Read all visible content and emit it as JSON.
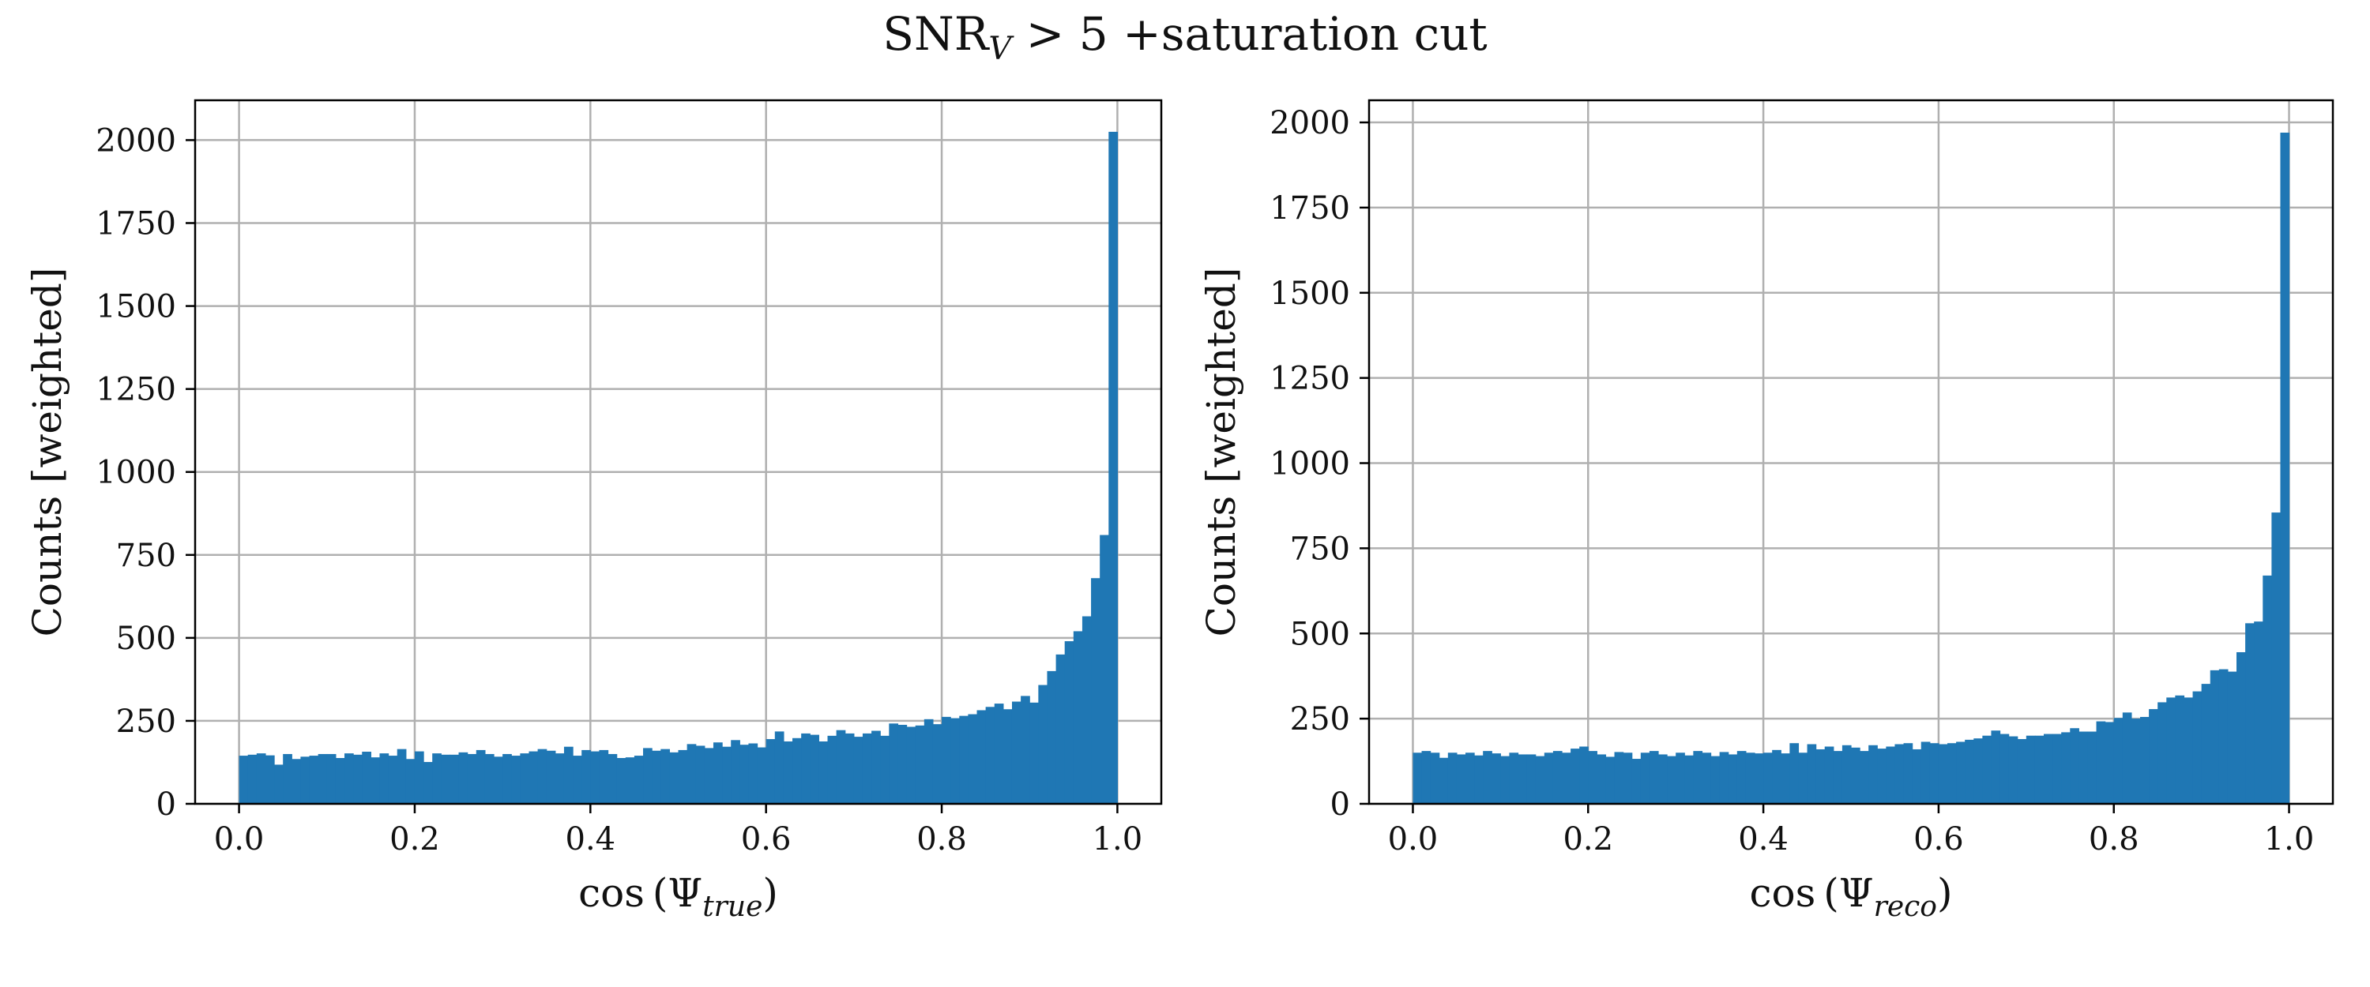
{
  "figure": {
    "suptitle_main": "SNR",
    "suptitle_sub": "V",
    "suptitle_rest": " > 5 +saturation cut"
  },
  "chart_data": [
    {
      "type": "bar",
      "histogram": true,
      "xlabel_func": "cos",
      "xlabel_symbol": "Ψ",
      "xlabel_sub": "true",
      "ylabel": "Counts [weighted]",
      "xlim": [
        -0.05,
        1.05
      ],
      "ylim": [
        0,
        2120
      ],
      "xticks": [
        0.0,
        0.2,
        0.4,
        0.6,
        0.8,
        1.0
      ],
      "xtick_labels": [
        "0.0",
        "0.2",
        "0.4",
        "0.6",
        "0.8",
        "1.0"
      ],
      "yticks": [
        0,
        250,
        500,
        750,
        1000,
        1250,
        1500,
        1750,
        2000
      ],
      "ytick_labels": [
        "0",
        "250",
        "500",
        "750",
        "1000",
        "1250",
        "1500",
        "1750",
        "2000"
      ],
      "grid": true,
      "color": "#1f77b4",
      "bin_range": [
        0.0,
        1.0
      ],
      "values": [
        145,
        148,
        152,
        146,
        118,
        150,
        135,
        142,
        145,
        150,
        150,
        138,
        152,
        148,
        157,
        140,
        152,
        145,
        165,
        135,
        158,
        126,
        152,
        148,
        148,
        155,
        150,
        162,
        150,
        142,
        150,
        145,
        152,
        158,
        165,
        160,
        152,
        172,
        145,
        162,
        158,
        162,
        150,
        138,
        140,
        145,
        168,
        160,
        165,
        155,
        162,
        180,
        175,
        168,
        185,
        172,
        192,
        178,
        182,
        170,
        195,
        218,
        188,
        198,
        212,
        208,
        188,
        205,
        222,
        212,
        202,
        212,
        220,
        205,
        242,
        238,
        232,
        236,
        255,
        240,
        262,
        258,
        265,
        270,
        282,
        292,
        302,
        285,
        308,
        325,
        305,
        358,
        400,
        450,
        490,
        520,
        565,
        680,
        810,
        2025
      ]
    },
    {
      "type": "bar",
      "histogram": true,
      "xlabel_func": "cos",
      "xlabel_symbol": "Ψ",
      "xlabel_sub": "reco",
      "ylabel": "Counts [weighted]",
      "xlim": [
        -0.05,
        1.05
      ],
      "ylim": [
        0,
        2065
      ],
      "xticks": [
        0.0,
        0.2,
        0.4,
        0.6,
        0.8,
        1.0
      ],
      "xtick_labels": [
        "0.0",
        "0.2",
        "0.4",
        "0.6",
        "0.8",
        "1.0"
      ],
      "yticks": [
        0,
        250,
        500,
        750,
        1000,
        1250,
        1500,
        1750,
        2000
      ],
      "ytick_labels": [
        "0",
        "250",
        "500",
        "750",
        "1000",
        "1250",
        "1500",
        "1750",
        "2000"
      ],
      "grid": true,
      "color": "#1f77b4",
      "bin_range": [
        0.0,
        1.0
      ],
      "values": [
        150,
        155,
        150,
        135,
        150,
        145,
        150,
        142,
        155,
        148,
        140,
        150,
        145,
        145,
        140,
        150,
        155,
        150,
        162,
        168,
        155,
        145,
        138,
        152,
        150,
        132,
        150,
        155,
        145,
        140,
        150,
        142,
        155,
        150,
        140,
        152,
        145,
        155,
        150,
        148,
        150,
        158,
        148,
        178,
        150,
        175,
        160,
        168,
        155,
        172,
        165,
        155,
        172,
        162,
        168,
        175,
        178,
        160,
        182,
        178,
        175,
        178,
        182,
        188,
        192,
        200,
        215,
        205,
        198,
        190,
        200,
        200,
        205,
        205,
        210,
        222,
        212,
        212,
        242,
        240,
        252,
        268,
        250,
        255,
        278,
        298,
        312,
        318,
        312,
        330,
        352,
        392,
        395,
        388,
        445,
        530,
        535,
        670,
        855,
        1970
      ]
    }
  ]
}
